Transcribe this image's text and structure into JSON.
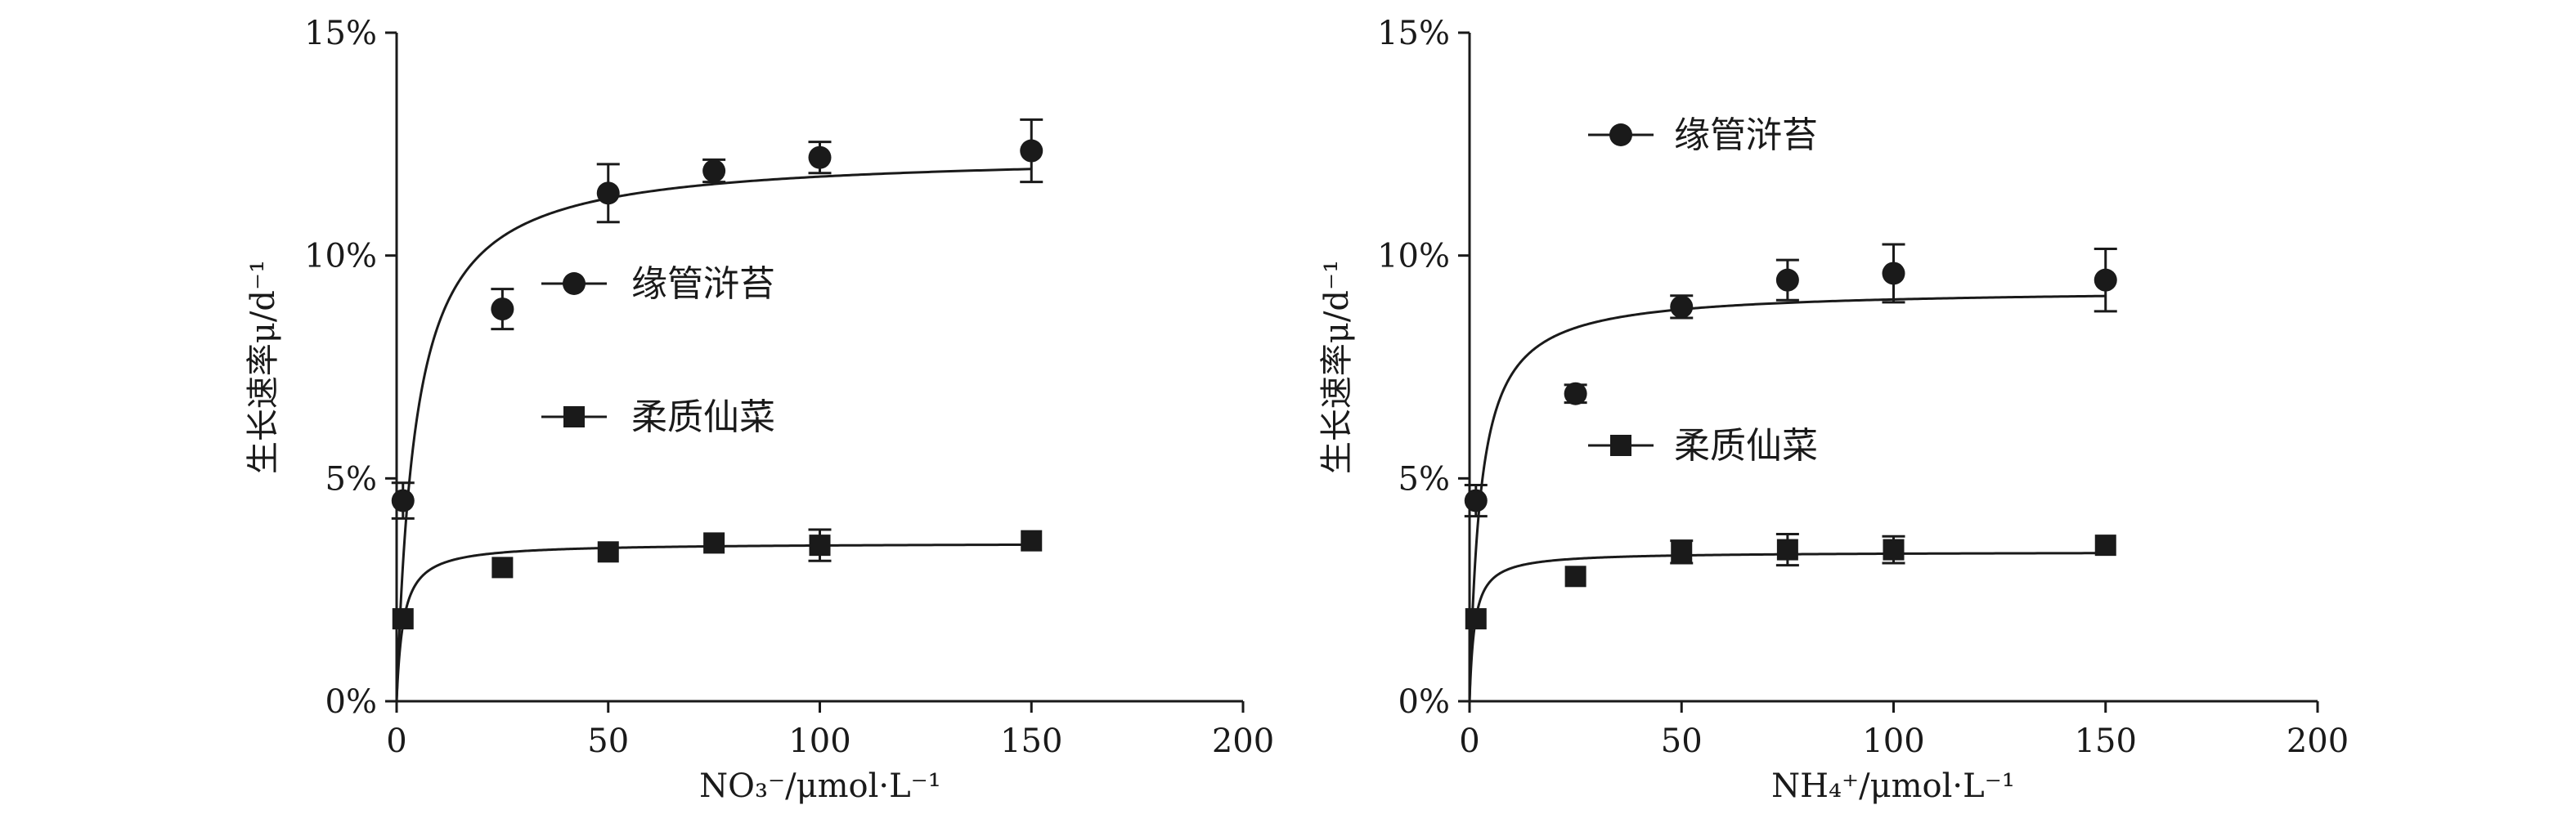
{
  "chart_data": [
    {
      "type": "scatter",
      "xlabel": "NO₃⁻/μmol·L⁻¹",
      "ylabel": "生长速率μ/d⁻¹",
      "xlim": [
        0,
        200
      ],
      "ylim": [
        0,
        15
      ],
      "xticks": [
        "0",
        "50",
        "100",
        "150",
        "200"
      ],
      "yticks": [
        "0%",
        "5%",
        "10%",
        "15%"
      ],
      "legend_position": "center",
      "series": [
        {
          "name": "缘管浒苔",
          "marker": "circle",
          "x": [
            1.5,
            25,
            50,
            75,
            100,
            150
          ],
          "y": [
            4.5,
            8.8,
            11.4,
            11.9,
            12.2,
            12.35
          ],
          "error": [
            0.4,
            0.45,
            0.65,
            0.25,
            0.35,
            0.7
          ],
          "fit": {
            "vmax": 12.3,
            "k": 4.5
          }
        },
        {
          "name": "柔质仙菜",
          "marker": "square",
          "x": [
            1.5,
            25,
            50,
            75,
            100,
            150
          ],
          "y": [
            1.85,
            3.0,
            3.35,
            3.55,
            3.5,
            3.6
          ],
          "error": [
            0.0,
            0.0,
            0.0,
            0.0,
            0.35,
            0.0
          ],
          "fit": {
            "vmax": 3.55,
            "k": 1.6
          }
        }
      ]
    },
    {
      "type": "scatter",
      "xlabel": "NH₄⁺/μmol·L⁻¹",
      "ylabel": "生长速率μ/d⁻¹",
      "xlim": [
        0,
        200
      ],
      "ylim": [
        0,
        15
      ],
      "xticks": [
        "0",
        "50",
        "100",
        "150",
        "200"
      ],
      "yticks": [
        "0%",
        "5%",
        "10%",
        "15%"
      ],
      "legend_position": "center",
      "series": [
        {
          "name": "缘管浒苔",
          "marker": "circle",
          "x": [
            1.5,
            25,
            50,
            75,
            100,
            150
          ],
          "y": [
            4.5,
            6.9,
            8.85,
            9.45,
            9.6,
            9.45
          ],
          "error": [
            0.35,
            0.2,
            0.25,
            0.45,
            0.65,
            0.7
          ],
          "fit": {
            "vmax": 9.25,
            "k": 2.6
          }
        },
        {
          "name": "柔质仙菜",
          "marker": "square",
          "x": [
            1.5,
            25,
            50,
            75,
            100,
            150
          ],
          "y": [
            1.85,
            2.8,
            3.35,
            3.4,
            3.4,
            3.5
          ],
          "error": [
            0.0,
            0.0,
            0.25,
            0.35,
            0.3,
            0.0
          ],
          "fit": {
            "vmax": 3.35,
            "k": 1.2
          }
        }
      ]
    }
  ]
}
